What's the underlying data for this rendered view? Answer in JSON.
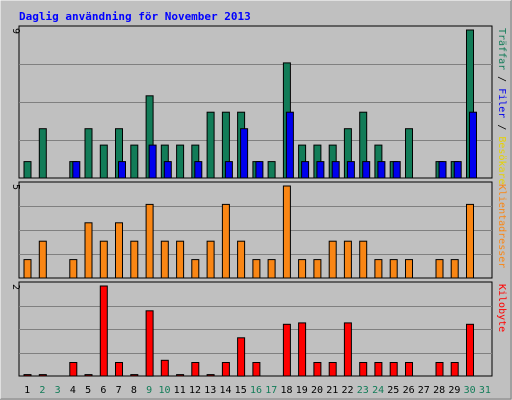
{
  "chart_data": {
    "type": "bar",
    "title": "Daglig användning för November 2013",
    "categories": [
      "1",
      "2",
      "3",
      "4",
      "5",
      "6",
      "7",
      "8",
      "9",
      "10",
      "11",
      "12",
      "13",
      "14",
      "15",
      "16",
      "17",
      "18",
      "19",
      "20",
      "21",
      "22",
      "23",
      "24",
      "25",
      "26",
      "27",
      "28",
      "29",
      "30",
      "31"
    ],
    "weekend_days": [
      "2",
      "3",
      "9",
      "10",
      "16",
      "17",
      "23",
      "24",
      "30",
      "31"
    ],
    "panels": [
      {
        "name": "upper",
        "ymax_label": "9",
        "ylim": [
          0,
          9
        ],
        "series": [
          {
            "name": "Träffar",
            "color": "#127c58",
            "values": [
              1,
              3,
              0,
              1,
              3,
              2,
              3,
              2,
              5,
              2,
              2,
              2,
              4,
              4,
              4,
              1,
              1,
              7,
              2,
              2,
              2,
              3,
              4,
              2,
              1,
              3,
              0,
              1,
              1,
              9
            ]
          },
          {
            "name": "Filer",
            "color": "#0000ee",
            "values": [
              0,
              0,
              0,
              1,
              0,
              0,
              1,
              0,
              2,
              1,
              0,
              1,
              0,
              1,
              3,
              1,
              0,
              4,
              1,
              1,
              1,
              1,
              1,
              1,
              1,
              0,
              0,
              1,
              1,
              4
            ]
          }
        ],
        "axis_label_parts": [
          {
            "text": "Träffar",
            "color": "#127c58"
          },
          {
            "text": " / ",
            "color": "#000000"
          },
          {
            "text": "Filer",
            "color": "#0000ee"
          },
          {
            "text": " / ",
            "color": "#000000"
          },
          {
            "text": "Besökare",
            "color": "#e6d200"
          }
        ]
      },
      {
        "name": "middle",
        "ymax_label": "5",
        "ylim": [
          0,
          5
        ],
        "series": [
          {
            "name": "Klientadresser",
            "color": "#f98614",
            "values": [
              1,
              2,
              0,
              1,
              3,
              2,
              3,
              2,
              4,
              2,
              2,
              1,
              2,
              4,
              2,
              1,
              1,
              5,
              1,
              1,
              2,
              2,
              2,
              1,
              1,
              1,
              0,
              1,
              1,
              4
            ]
          }
        ],
        "axis_label_parts": [
          {
            "text": "Klientadresser",
            "color": "#f98614"
          }
        ]
      },
      {
        "name": "lower",
        "ymax_label": "2",
        "ylim": [
          0,
          2
        ],
        "series": [
          {
            "name": "Kilobyte",
            "color": "#ff0000",
            "values": [
              0.03,
              0.03,
              0,
              0.3,
              0.03,
              2,
              0.3,
              0.03,
              1.45,
              0.35,
              0.03,
              0.3,
              0.03,
              0.3,
              0.85,
              0.3,
              0,
              1.15,
              1.18,
              0.3,
              0.3,
              1.18,
              0.3,
              0.3,
              0.3,
              0.3,
              0,
              0.3,
              0.3,
              1.15
            ]
          }
        ],
        "axis_label_parts": [
          {
            "text": "Kilobyte",
            "color": "#ff0000"
          }
        ]
      }
    ],
    "colors": {
      "background": "#c0c0c0",
      "title": "#0000ff",
      "weekday_label": "#000000",
      "weekend_label": "#127c58",
      "gridline": "#808080"
    },
    "grid": true,
    "legend": "right-side-vertical"
  }
}
